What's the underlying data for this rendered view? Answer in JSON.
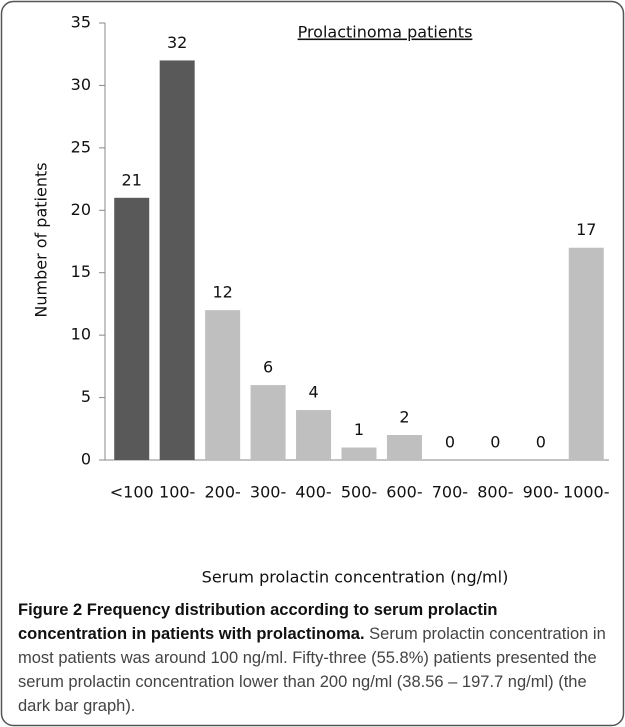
{
  "chart_data": {
    "type": "bar",
    "title": "Prolactinoma patients",
    "x_label": "Serum prolactin concentration (ng/ml)",
    "y_label": "Number of patients",
    "categories": [
      "<100",
      "100-",
      "200-",
      "300-",
      "400-",
      "500-",
      "600-",
      "700-",
      "800-",
      "900-",
      "1000-"
    ],
    "values": [
      21,
      32,
      12,
      6,
      4,
      1,
      2,
      0,
      0,
      0,
      17
    ],
    "colors": [
      "#595959",
      "#595959",
      "#bfbfbf",
      "#bfbfbf",
      "#bfbfbf",
      "#bfbfbf",
      "#bfbfbf",
      "#bfbfbf",
      "#bfbfbf",
      "#bfbfbf",
      "#bfbfbf"
    ],
    "ylim": [
      0,
      35
    ],
    "yticks": [
      0,
      5,
      10,
      15,
      20,
      25,
      30,
      35
    ],
    "grid": false
  },
  "caption": {
    "title": "Figure 2 Frequency distribution according to serum prolactin concentration in patients with prolactinoma.",
    "text": "Serum prolactin concentration in most patients was around 100 ng/ml. Fifty-three (55.8%) patients presented the serum prolactin concentration lower than 200 ng/ml (38.56 – 197.7 ng/ml) (the dark bar graph)."
  }
}
